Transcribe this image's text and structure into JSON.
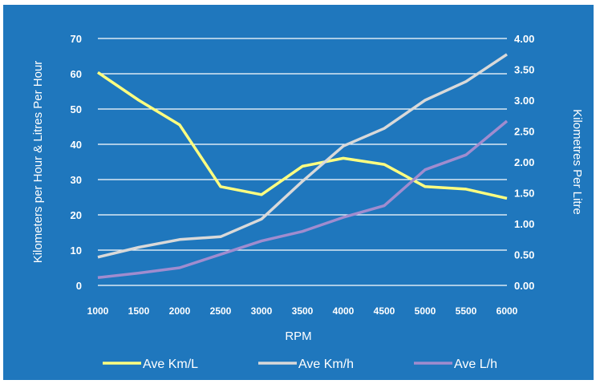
{
  "chart_data": {
    "type": "line",
    "title": "",
    "xlabel": "RPM",
    "ylabel": "Kilometers per Hour & Litres Per Hour",
    "y2label": "Kilometres Per Litre",
    "categories": [
      "1000",
      "1500",
      "2000",
      "2500",
      "3000",
      "3500",
      "4000",
      "4500",
      "5000",
      "5500",
      "6000"
    ],
    "ylim": [
      0,
      70
    ],
    "y_ticks": [
      "0",
      "10",
      "20",
      "30",
      "40",
      "50",
      "60",
      "70"
    ],
    "y2lim": [
      0,
      4
    ],
    "y2_ticks": [
      "0.00",
      "0.50",
      "1.00",
      "1.50",
      "2.00",
      "2.50",
      "3.00",
      "3.50",
      "4.00"
    ],
    "grid": true,
    "legend_position": "bottom",
    "background": "#1f77bd",
    "series": [
      {
        "name": "Ave Km/L",
        "axis": "right",
        "color": "#ffff80",
        "values": [
          3.45,
          3.0,
          2.6,
          1.6,
          1.47,
          1.93,
          2.06,
          1.96,
          1.6,
          1.56,
          1.41
        ]
      },
      {
        "name": "Ave Km/h",
        "axis": "left",
        "color": "#d9d9d9",
        "values": [
          8,
          10.8,
          13,
          13.8,
          18.8,
          29.5,
          39.5,
          44.5,
          52.5,
          57.8,
          65.5
        ]
      },
      {
        "name": "Ave L/h",
        "axis": "left",
        "color": "#a08ccf",
        "values": [
          2.2,
          3.5,
          5,
          8.8,
          12.6,
          15.3,
          19.3,
          22.6,
          32.8,
          37,
          46.6
        ]
      }
    ]
  }
}
